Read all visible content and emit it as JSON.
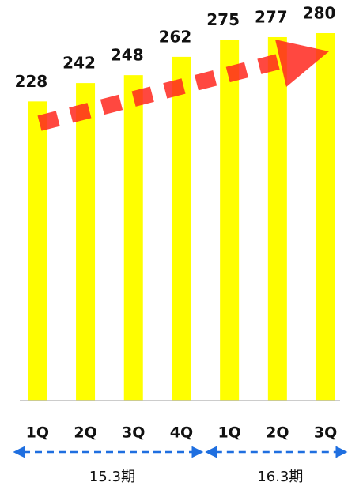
{
  "chart_data": {
    "type": "bar",
    "categories": [
      "1Q",
      "2Q",
      "3Q",
      "4Q",
      "1Q",
      "2Q",
      "3Q"
    ],
    "values": [
      228,
      242,
      248,
      262,
      275,
      277,
      280
    ],
    "color": "#ffff00",
    "ylim": [
      0,
      280
    ],
    "groups": [
      "15.3期",
      "16.3期"
    ]
  }
}
